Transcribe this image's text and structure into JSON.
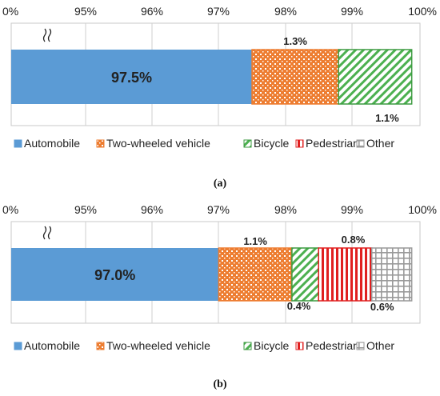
{
  "chart_data": [
    {
      "type": "bar",
      "orientation": "horizontal",
      "stacked": true,
      "caption": "(a)",
      "x_ticks": [
        "0%",
        "95%",
        "96%",
        "97%",
        "98%",
        "99%",
        "100%"
      ],
      "axis_break": true,
      "xlim": [
        94,
        100
      ],
      "grid": true,
      "legend_position": "bottom",
      "series": [
        {
          "name": "Automobile",
          "value": 97.5,
          "label": "97.5%",
          "color": "#5B9BD5",
          "pattern": "solid"
        },
        {
          "name": "Two-wheeled vehicle",
          "value": 1.3,
          "label": "1.3%",
          "color": "#ED7D31",
          "pattern": "dots"
        },
        {
          "name": "Bicycle",
          "value": 1.1,
          "label": "1.1%",
          "color": "#4CB050",
          "pattern": "diagonal"
        },
        {
          "name": "Pedestrian",
          "value": 0,
          "label": "",
          "color": "#E02020",
          "pattern": "vertical"
        },
        {
          "name": "Other",
          "value": 0,
          "label": "",
          "color": "#A0A0A0",
          "pattern": "grid"
        }
      ]
    },
    {
      "type": "bar",
      "orientation": "horizontal",
      "stacked": true,
      "caption": "(b)",
      "x_ticks": [
        "0%",
        "95%",
        "96%",
        "97%",
        "98%",
        "99%",
        "100%"
      ],
      "axis_break": true,
      "xlim": [
        94,
        100
      ],
      "grid": true,
      "legend_position": "bottom",
      "series": [
        {
          "name": "Automobile",
          "value": 97.0,
          "label": "97.0%",
          "color": "#5B9BD5",
          "pattern": "solid"
        },
        {
          "name": "Two-wheeled vehicle",
          "value": 1.1,
          "label": "1.1%",
          "color": "#ED7D31",
          "pattern": "dots"
        },
        {
          "name": "Bicycle",
          "value": 0.4,
          "label": "0.4%",
          "color": "#4CB050",
          "pattern": "diagonal"
        },
        {
          "name": "Pedestrian",
          "value": 0.8,
          "label": "0.8%",
          "color": "#E02020",
          "pattern": "vertical"
        },
        {
          "name": "Other",
          "value": 0.6,
          "label": "0.6%",
          "color": "#A0A0A0",
          "pattern": "grid"
        }
      ]
    }
  ]
}
